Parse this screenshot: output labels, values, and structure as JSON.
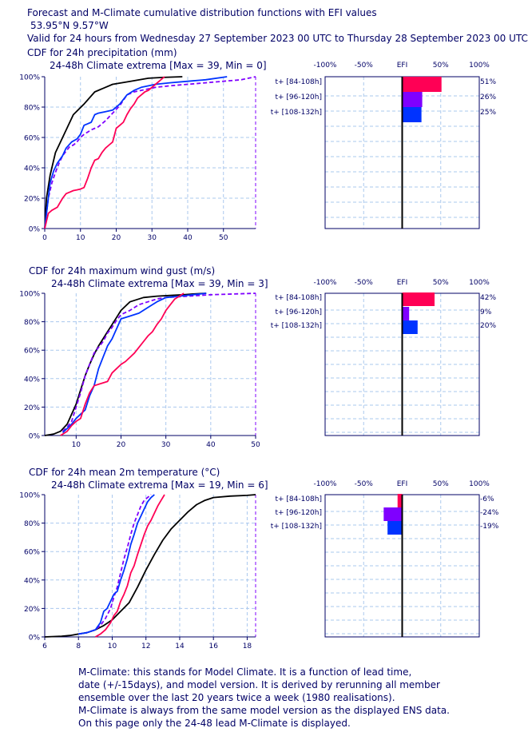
{
  "header": {
    "title": "Forecast and M-Climate cumulative distribution functions with EFI values",
    "location": "53.95°N 9.57°W",
    "validity": "Valid for 24 hours from Wednesday 27 September 2023 00 UTC to Thursday 28 September 2023 00 UTC"
  },
  "colors": {
    "axis": "#000066",
    "grid": "#aac8ee",
    "climate": "#000000",
    "forecast_84_108": "#ff0055",
    "forecast_96_120": "#7f00ff",
    "forecast_108_132": "#0033ff"
  },
  "footer": {
    "lines": [
      "M-Climate: this stands for Model Climate. It is a function of lead time,",
      "date (+/-15days), and model version. It is derived by rerunning all member",
      "ensemble over the last 20 years twice a week (1980 realisations).",
      "M-Climate is always from the same model version as the displayed ENS data.",
      "On this page only the 24-48 lead M-Climate is displayed."
    ]
  },
  "chart_data": [
    {
      "type": "line",
      "title": "CDF for 24h precipitation (mm)",
      "subtitle": "24-48h Climate extrema [Max = 39, Min = 0]",
      "xlim": [
        0,
        59
      ],
      "ylim": [
        0,
        100
      ],
      "xticks": [
        0,
        10,
        20,
        30,
        40,
        50
      ],
      "yticks": [
        0,
        20,
        40,
        60,
        80,
        100
      ],
      "yticklabels": [
        "0%",
        "20%",
        "40%",
        "60%",
        "80%",
        "100%"
      ],
      "series": [
        {
          "style": "solid",
          "color": "#000000",
          "x": [
            0,
            0.5,
            1.5,
            3,
            5,
            8,
            11,
            14,
            19,
            24,
            29,
            33,
            38.5
          ],
          "y": [
            0,
            20,
            35,
            50,
            60,
            75,
            82,
            90,
            95,
            97,
            99,
            99.5,
            100
          ]
        },
        {
          "style": "dashed",
          "color": "#7f00ff",
          "x": [
            0,
            0.5,
            1,
            2,
            3,
            4,
            5,
            6,
            7,
            8,
            9,
            10,
            11,
            13,
            15,
            17,
            19,
            21,
            23,
            25,
            27,
            29,
            31,
            35,
            40,
            45,
            50,
            55,
            59
          ],
          "y": [
            0,
            10,
            20,
            30,
            37,
            43,
            48,
            51,
            54,
            55,
            57,
            60,
            62,
            65,
            67,
            71,
            76,
            81,
            88,
            90,
            91,
            92,
            93,
            94,
            95,
            96,
            97,
            98,
            100
          ]
        },
        {
          "style": "solid",
          "color": "#0033ff",
          "x": [
            0,
            0.5,
            1,
            1.5,
            2.5,
            3.5,
            5,
            6,
            7.5,
            9,
            10,
            11,
            12,
            13,
            14,
            15,
            17,
            19,
            21,
            23,
            25,
            27,
            29,
            31,
            35,
            40,
            45,
            51
          ],
          "y": [
            0,
            10,
            20,
            30,
            38,
            43,
            48,
            53,
            57,
            59,
            62,
            68,
            69,
            70,
            75,
            76,
            77,
            78,
            82,
            88,
            91,
            93,
            94,
            95,
            96,
            97,
            98,
            100
          ]
        },
        {
          "style": "solid",
          "color": "#ff0055",
          "x": [
            0,
            0.5,
            1,
            2,
            3.5,
            5,
            6,
            7,
            8,
            9,
            10,
            11,
            12,
            13,
            14,
            15,
            16,
            17,
            18,
            19,
            20,
            21,
            22,
            23,
            24,
            25,
            26,
            27,
            28,
            29,
            30,
            31,
            32,
            33.5
          ],
          "y": [
            0,
            5,
            10,
            12,
            14,
            20,
            23,
            24,
            25,
            25.5,
            26,
            27,
            33,
            40,
            45,
            46,
            50,
            53,
            55,
            57,
            66,
            68,
            70,
            75,
            79,
            82,
            86,
            88,
            90,
            91,
            93,
            95,
            97,
            100
          ]
        }
      ],
      "efi": {
        "xticks": [
          -100,
          -50,
          0,
          50,
          100
        ],
        "xticklabels": [
          "-100%",
          "-50%",
          "EFI",
          "50%",
          "100%"
        ],
        "rows": [
          {
            "label": "t+ [84-108h]",
            "value": 51,
            "value_label": "51%",
            "color": "#ff0055"
          },
          {
            "label": "t+ [96-120h]",
            "value": 26,
            "value_label": "26%",
            "color": "#7f00ff"
          },
          {
            "label": "t+ [108-132h]",
            "value": 25,
            "value_label": "25%",
            "color": "#0033ff"
          }
        ]
      }
    },
    {
      "type": "line",
      "title": "CDF for 24h maximum wind gust (m/s)",
      "subtitle": "24-48h Climate extrema [Max = 39, Min = 3]",
      "xlim": [
        3,
        50
      ],
      "ylim": [
        0,
        100
      ],
      "xticks": [
        10,
        20,
        30,
        40,
        50
      ],
      "yticks": [
        0,
        20,
        40,
        60,
        80,
        100
      ],
      "yticklabels": [
        "0%",
        "20%",
        "40%",
        "60%",
        "80%",
        "100%"
      ],
      "series": [
        {
          "style": "solid",
          "color": "#000000",
          "x": [
            3,
            5,
            6.5,
            8,
            9,
            10,
            11,
            12,
            13,
            14,
            15,
            16,
            17,
            18,
            19,
            20,
            22,
            25,
            28,
            31,
            34,
            36,
            39
          ],
          "y": [
            0,
            1,
            3,
            8,
            15,
            22,
            32,
            42,
            50,
            57,
            63,
            68,
            73,
            78,
            83,
            88,
            94,
            97,
            98,
            98.5,
            99,
            99.5,
            100
          ]
        },
        {
          "style": "dashed",
          "color": "#7f00ff",
          "x": [
            7,
            8,
            9,
            10,
            11,
            12,
            13,
            14,
            15,
            16,
            17,
            18,
            19,
            20,
            22,
            24,
            26,
            28,
            30,
            35,
            40,
            45,
            50
          ],
          "y": [
            3,
            6,
            10,
            20,
            30,
            42,
            50,
            58,
            62,
            66,
            72,
            76,
            81,
            85,
            88,
            92,
            94,
            96,
            97,
            98,
            99,
            99.5,
            100
          ]
        },
        {
          "style": "solid",
          "color": "#0033ff",
          "x": [
            7,
            8,
            9,
            10,
            11,
            12,
            13,
            14,
            15,
            16,
            17,
            18,
            19,
            20,
            22,
            24,
            26,
            28,
            30,
            33,
            36,
            39
          ],
          "y": [
            2,
            5,
            8,
            12,
            15,
            18,
            28,
            35,
            47,
            55,
            63,
            68,
            75,
            82,
            84,
            86,
            90,
            94,
            97,
            98,
            99,
            100
          ]
        },
        {
          "style": "solid",
          "color": "#ff0055",
          "x": [
            6.5,
            8,
            9,
            10,
            11,
            12,
            13,
            14,
            15,
            16,
            17,
            18,
            19,
            20,
            21,
            22,
            23,
            24,
            25,
            26,
            27,
            28,
            29,
            30,
            31,
            32,
            33,
            34
          ],
          "y": [
            0,
            3,
            7,
            10,
            12,
            22,
            30,
            35,
            36,
            37,
            38,
            44,
            47,
            50,
            52,
            55,
            58,
            62,
            66,
            70,
            73,
            78,
            82,
            88,
            92,
            96,
            98,
            100
          ]
        }
      ],
      "efi": {
        "xticks": [
          -100,
          -50,
          0,
          50,
          100
        ],
        "xticklabels": [
          "-100%",
          "-50%",
          "EFI",
          "50%",
          "100%"
        ],
        "rows": [
          {
            "label": "t+ [84-108h]",
            "value": 42,
            "value_label": "42%",
            "color": "#ff0055"
          },
          {
            "label": "t+ [96-120h]",
            "value": 9,
            "value_label": "9%",
            "color": "#7f00ff"
          },
          {
            "label": "t+ [108-132h]",
            "value": 20,
            "value_label": "20%",
            "color": "#0033ff"
          }
        ]
      }
    },
    {
      "type": "line",
      "title": "CDF for 24h mean 2m temperature (°C)",
      "subtitle": "24-48h Climate extrema [Max = 19, Min = 6]",
      "xlim": [
        6,
        18.5
      ],
      "ylim": [
        0,
        100
      ],
      "xticks": [
        6,
        8,
        10,
        12,
        14,
        16,
        18
      ],
      "yticks": [
        0,
        20,
        40,
        60,
        80,
        100
      ],
      "yticklabels": [
        "0%",
        "20%",
        "40%",
        "60%",
        "80%",
        "100%"
      ],
      "series": [
        {
          "style": "solid",
          "color": "#000000",
          "x": [
            6,
            7,
            7.5,
            8,
            8.5,
            9,
            9.5,
            10,
            10.5,
            11,
            11.5,
            12,
            12.5,
            13,
            13.5,
            14,
            14.5,
            15,
            15.5,
            16,
            17,
            18,
            18.5
          ],
          "y": [
            0,
            0.5,
            1,
            2,
            3,
            5,
            8,
            12,
            18,
            24,
            35,
            47,
            58,
            68,
            76,
            82,
            88,
            93,
            96,
            98,
            99,
            99.5,
            100
          ]
        },
        {
          "style": "dashed",
          "color": "#7f00ff",
          "x": [
            8,
            8.5,
            9,
            9.3,
            9.6,
            9.9,
            10.1,
            10.3,
            10.5,
            10.7,
            10.9,
            11.1,
            11.3,
            11.5,
            11.7,
            11.9,
            12.1,
            12.3
          ],
          "y": [
            2,
            3,
            5,
            8,
            13,
            20,
            28,
            35,
            45,
            55,
            63,
            72,
            80,
            86,
            92,
            96,
            98,
            100
          ]
        },
        {
          "style": "solid",
          "color": "#0033ff",
          "x": [
            8,
            8.5,
            9,
            9.3,
            9.5,
            9.7,
            9.9,
            10.1,
            10.3,
            10.5,
            10.7,
            10.9,
            11.1,
            11.3,
            11.5,
            11.7,
            11.9,
            12.1,
            12.3,
            12.5
          ],
          "y": [
            2,
            3,
            5,
            10,
            18,
            20,
            25,
            30,
            32,
            40,
            47,
            55,
            65,
            72,
            80,
            85,
            90,
            95,
            98,
            100
          ]
        },
        {
          "style": "solid",
          "color": "#ff0055",
          "x": [
            9,
            9.3,
            9.6,
            9.9,
            10.1,
            10.3,
            10.5,
            10.7,
            10.9,
            11.1,
            11.3,
            11.5,
            11.7,
            11.9,
            12.1,
            12.3,
            12.5,
            12.7,
            12.9,
            13.1
          ],
          "y": [
            0,
            2,
            5,
            10,
            15,
            18,
            25,
            30,
            36,
            45,
            50,
            58,
            65,
            72,
            78,
            82,
            87,
            92,
            96,
            100
          ]
        }
      ],
      "efi": {
        "xticks": [
          -100,
          -50,
          0,
          50,
          100
        ],
        "xticklabels": [
          "-100%",
          "-50%",
          "EFI",
          "50%",
          "100%"
        ],
        "rows": [
          {
            "label": "t+ [84-108h]",
            "value": -6,
            "value_label": "-6%",
            "color": "#ff0055"
          },
          {
            "label": "t+ [96-120h]",
            "value": -24,
            "value_label": "-24%",
            "color": "#7f00ff"
          },
          {
            "label": "t+ [108-132h]",
            "value": -19,
            "value_label": "-19%",
            "color": "#0033ff"
          }
        ]
      }
    }
  ]
}
